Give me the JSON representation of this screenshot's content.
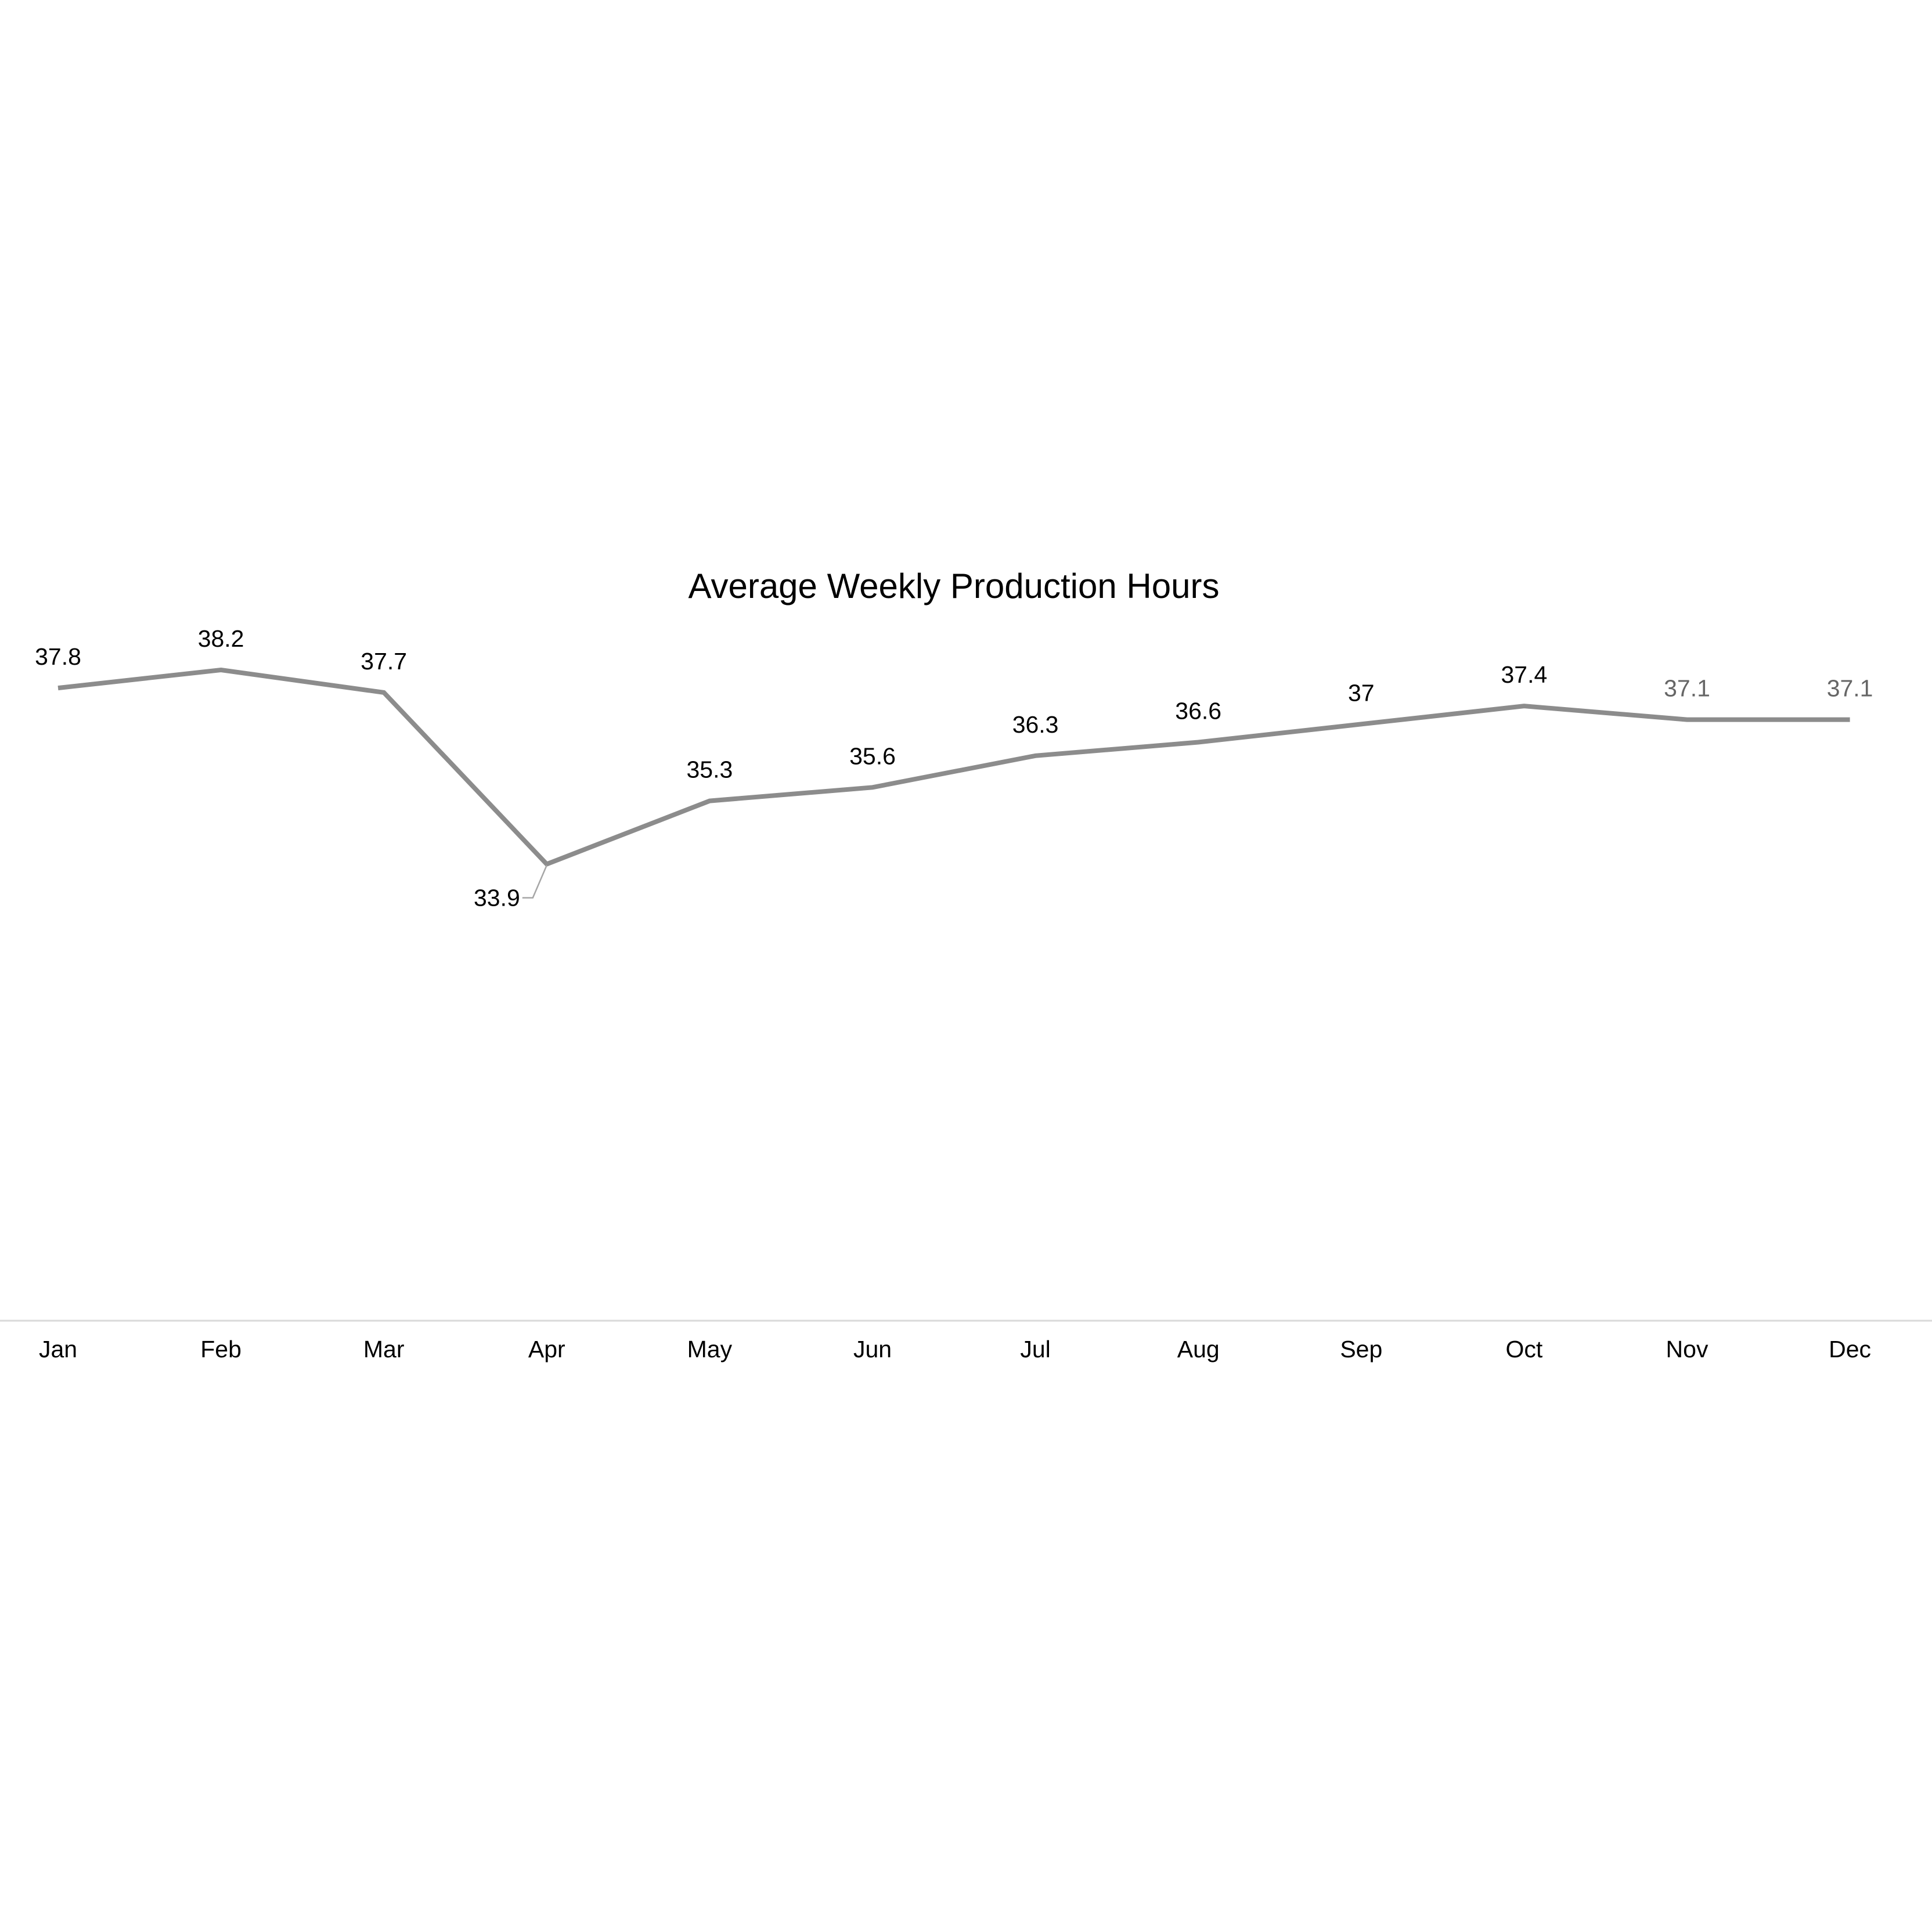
{
  "chart_data": {
    "type": "line",
    "title": "Average Weekly Production Hours",
    "xlabel": "",
    "ylabel": "",
    "categories": [
      "Jan",
      "Feb",
      "Mar",
      "Apr",
      "May",
      "Jun",
      "Jul",
      "Aug",
      "Sep",
      "Oct",
      "Nov",
      "Dec"
    ],
    "series": [
      {
        "values": [
          37.8,
          38.2,
          37.7,
          33.9,
          35.3,
          35.6,
          36.3,
          36.6,
          37,
          37.4,
          37.1,
          37.1
        ],
        "labels": [
          "37.8",
          "38.2",
          "37.7",
          "33.9",
          "35.3",
          "35.6",
          "36.3",
          "36.6",
          "37",
          "37.4",
          "37.1",
          "37.1"
        ],
        "label_positions": [
          "above",
          "above",
          "above",
          "below-left",
          "above",
          "above",
          "above",
          "above",
          "above",
          "above",
          "above",
          "above"
        ],
        "label_muted": [
          false,
          false,
          false,
          false,
          false,
          false,
          false,
          false,
          false,
          false,
          true,
          true
        ]
      }
    ],
    "grid": false,
    "legend": "none",
    "y_axis_visible": false,
    "colors": {
      "line": "#8c8c8c",
      "baseline": "#d9d9d9",
      "label": "#000000",
      "label_muted": "#666666",
      "leader": "#a6a6a6"
    }
  }
}
